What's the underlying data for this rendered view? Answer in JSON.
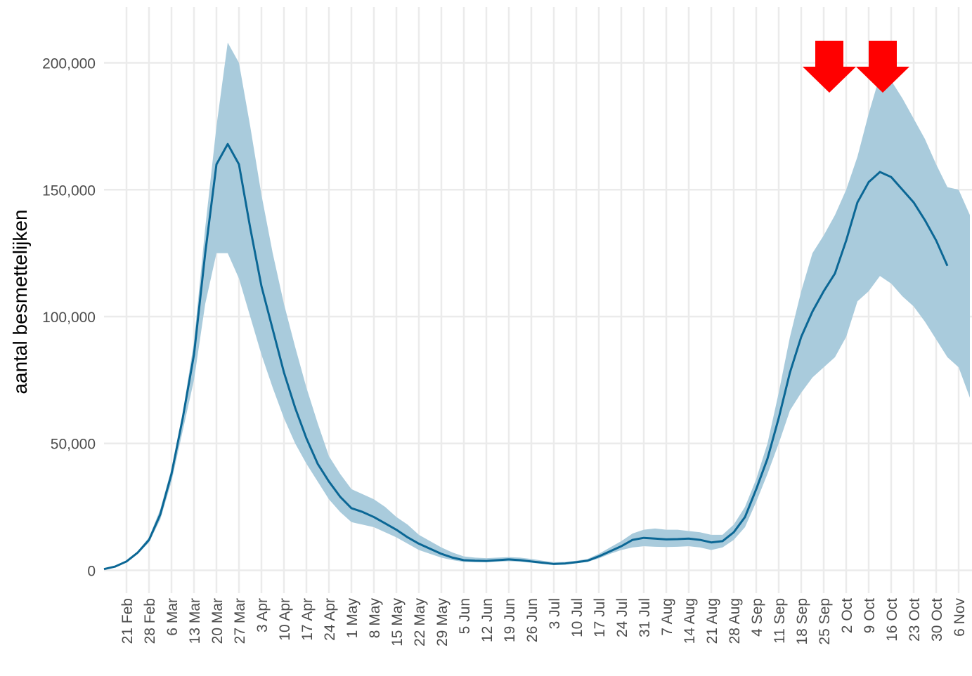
{
  "chart_data": {
    "type": "line",
    "y_label": "aantal besmettelijken",
    "categories": [
      null,
      null,
      "21 Feb",
      null,
      "28 Feb",
      null,
      "6 Mar",
      null,
      "13 Mar",
      null,
      "20 Mar",
      null,
      "27 Mar",
      null,
      "3 Apr",
      null,
      "10 Apr",
      null,
      "17 Apr",
      null,
      "24 Apr",
      null,
      "1 May",
      null,
      "8 May",
      null,
      "15 May",
      null,
      "22 May",
      null,
      "29 May",
      null,
      "5 Jun",
      null,
      "12 Jun",
      null,
      "19 Jun",
      null,
      "26 Jun",
      null,
      "3 Jul",
      null,
      "10 Jul",
      null,
      "17 Jul",
      null,
      "24 Jul",
      null,
      "31 Jul",
      null,
      "7 Aug",
      null,
      "14 Aug",
      null,
      "21 Aug",
      null,
      "28 Aug",
      null,
      "4 Sep",
      null,
      "11 Sep",
      null,
      "18 Sep",
      null,
      "25 Sep",
      null,
      "2 Oct",
      null,
      "9 Oct",
      null,
      "16 Oct",
      null,
      "23 Oct",
      null,
      "30 Oct",
      null,
      "6 Nov",
      null
    ],
    "values": [
      500,
      1500,
      3500,
      7000,
      12000,
      22000,
      38000,
      60000,
      85000,
      125000,
      160000,
      168000,
      160000,
      135000,
      112000,
      95000,
      78000,
      64000,
      52000,
      42000,
      35000,
      29000,
      24500,
      23000,
      21000,
      18500,
      16000,
      13000,
      10500,
      8500,
      6500,
      5000,
      4000,
      3800,
      3700,
      4000,
      4300,
      4000,
      3500,
      3000,
      2500,
      2700,
      3200,
      3800,
      5500,
      7500,
      9500,
      12000,
      12800,
      12500,
      12200,
      12300,
      12500,
      12000,
      11000,
      11500,
      15000,
      21000,
      32000,
      44000,
      60000,
      78000,
      92000,
      102000,
      110000,
      117000,
      130000,
      145000,
      153000,
      157000,
      155000,
      150000,
      145000,
      138000,
      130000,
      120000,
      null,
      null
    ],
    "lower": [
      500,
      1500,
      3000,
      6500,
      11000,
      20000,
      35000,
      55000,
      75000,
      105000,
      125000,
      125000,
      115000,
      100000,
      85000,
      72000,
      60000,
      50000,
      42000,
      35000,
      28000,
      23000,
      19000,
      18000,
      17000,
      15000,
      13000,
      10500,
      8000,
      6500,
      5000,
      4000,
      3300,
      3200,
      3200,
      3400,
      3600,
      3400,
      3000,
      2500,
      2200,
      2300,
      2800,
      3300,
      4700,
      6500,
      8000,
      9000,
      9500,
      9300,
      9200,
      9300,
      9500,
      9000,
      8000,
      9000,
      12000,
      17000,
      27000,
      38000,
      50000,
      63000,
      70000,
      76000,
      80000,
      84000,
      92000,
      106000,
      110000,
      116000,
      113000,
      108000,
      104000,
      98000,
      91000,
      84000,
      80000,
      68000
    ],
    "upper": [
      500,
      1500,
      4000,
      7500,
      13000,
      24000,
      40000,
      62000,
      90000,
      135000,
      175000,
      208000,
      200000,
      175000,
      148000,
      125000,
      105000,
      88000,
      72000,
      58000,
      45000,
      38000,
      32000,
      30000,
      28000,
      25000,
      21000,
      18000,
      14000,
      11500,
      9000,
      7000,
      5500,
      5000,
      4800,
      5000,
      5200,
      5000,
      4500,
      3800,
      3200,
      3300,
      3800,
      4500,
      6500,
      9000,
      11500,
      14500,
      16000,
      16500,
      16000,
      16000,
      15500,
      15000,
      14000,
      14000,
      18000,
      25000,
      36000,
      50000,
      70000,
      92000,
      110000,
      125000,
      132000,
      140000,
      150000,
      163000,
      180000,
      195000,
      193000,
      186000,
      178000,
      170000,
      160000,
      151000,
      150000,
      140000
    ],
    "color": "#0b6795",
    "band_color": "#a9cbdc",
    "ylim": [
      -9000,
      222000
    ],
    "yticks": [
      {
        "value": 0,
        "label": "0"
      },
      {
        "value": 50000,
        "label": "50,000"
      },
      {
        "value": 100000,
        "label": "100,000"
      },
      {
        "value": 150000,
        "label": "150,000"
      },
      {
        "value": 200000,
        "label": "200,000"
      }
    ],
    "grid": true
  }
}
